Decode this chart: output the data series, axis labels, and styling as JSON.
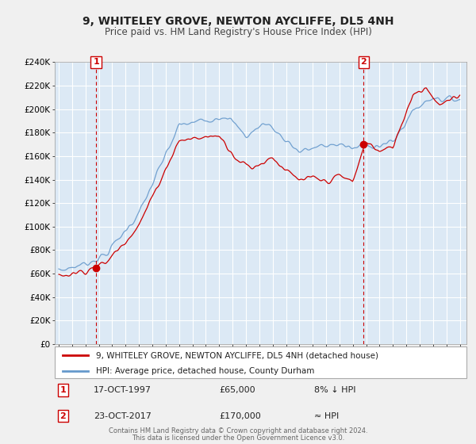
{
  "title": "9, WHITELEY GROVE, NEWTON AYCLIFFE, DL5 4NH",
  "subtitle": "Price paid vs. HM Land Registry's House Price Index (HPI)",
  "bg_color": "#f0f0f0",
  "plot_bg_color": "#dce9f5",
  "grid_color": "#ffffff",
  "hpi_color": "#6699cc",
  "price_color": "#cc0000",
  "sale1_x": 1997.79,
  "sale1_y": 65000,
  "sale1_label": "1",
  "sale2_x": 2017.81,
  "sale2_y": 170000,
  "sale2_label": "2",
  "vline_color": "#cc0000",
  "marker_color": "#cc0000",
  "ylim": [
    0,
    240000
  ],
  "xlim_left": 1994.7,
  "xlim_right": 2025.5,
  "yticks": [
    0,
    20000,
    40000,
    60000,
    80000,
    100000,
    120000,
    140000,
    160000,
    180000,
    200000,
    220000,
    240000
  ],
  "ytick_labels": [
    "£0",
    "£20K",
    "£40K",
    "£60K",
    "£80K",
    "£100K",
    "£120K",
    "£140K",
    "£160K",
    "£180K",
    "£200K",
    "£220K",
    "£240K"
  ],
  "xticks": [
    1995,
    1996,
    1997,
    1998,
    1999,
    2000,
    2001,
    2002,
    2003,
    2004,
    2005,
    2006,
    2007,
    2008,
    2009,
    2010,
    2011,
    2012,
    2013,
    2014,
    2015,
    2016,
    2017,
    2018,
    2019,
    2020,
    2021,
    2022,
    2023,
    2024,
    2025
  ],
  "legend_house_label": "9, WHITELEY GROVE, NEWTON AYCLIFFE, DL5 4NH (detached house)",
  "legend_hpi_label": "HPI: Average price, detached house, County Durham",
  "annotation1_date": "17-OCT-1997",
  "annotation1_price": "£65,000",
  "annotation1_hpi": "8% ↓ HPI",
  "annotation2_date": "23-OCT-2017",
  "annotation2_price": "£170,000",
  "annotation2_hpi": "≈ HPI",
  "footnote1": "Contains HM Land Registry data © Crown copyright and database right 2024.",
  "footnote2": "This data is licensed under the Open Government Licence v3.0."
}
